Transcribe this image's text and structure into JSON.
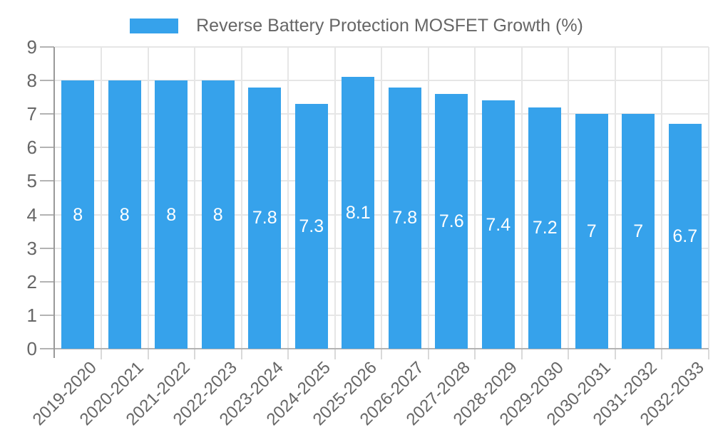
{
  "chart_data": {
    "type": "bar",
    "title": "Reverse Battery Protection MOSFET Growth (%)",
    "categories": [
      "2019-2020",
      "2020-2021",
      "2021-2022",
      "2022-2023",
      "2023-2024",
      "2024-2025",
      "2025-2026",
      "2026-2027",
      "2027-2028",
      "2028-2029",
      "2029-2030",
      "2030-2031",
      "2031-2032",
      "2032-2033"
    ],
    "values": [
      8,
      8,
      8,
      8,
      7.8,
      7.3,
      8.1,
      7.8,
      7.6,
      7.4,
      7.2,
      7,
      7,
      6.7
    ],
    "bar_labels": [
      "8",
      "8",
      "8",
      "8",
      "7.8",
      "7.3",
      "8.1",
      "7.8",
      "7.6",
      "7.4",
      "7.2",
      "7",
      "7",
      "6.7"
    ],
    "xlabel": "",
    "ylabel": "",
    "ylim": [
      0,
      9
    ],
    "yticks": [
      0,
      1,
      2,
      3,
      4,
      5,
      6,
      7,
      8,
      9
    ],
    "legend_position": "top",
    "grid": true,
    "x_label_rotation_deg": 45,
    "value_label_position": "inside-center",
    "colors": {
      "bar": "#36A2EB",
      "value_label": "#ffffff",
      "axis_text": "#666666",
      "gridline": "#e6e6e6",
      "tick": "#b3b3b3",
      "axis_line": "#999999"
    }
  }
}
